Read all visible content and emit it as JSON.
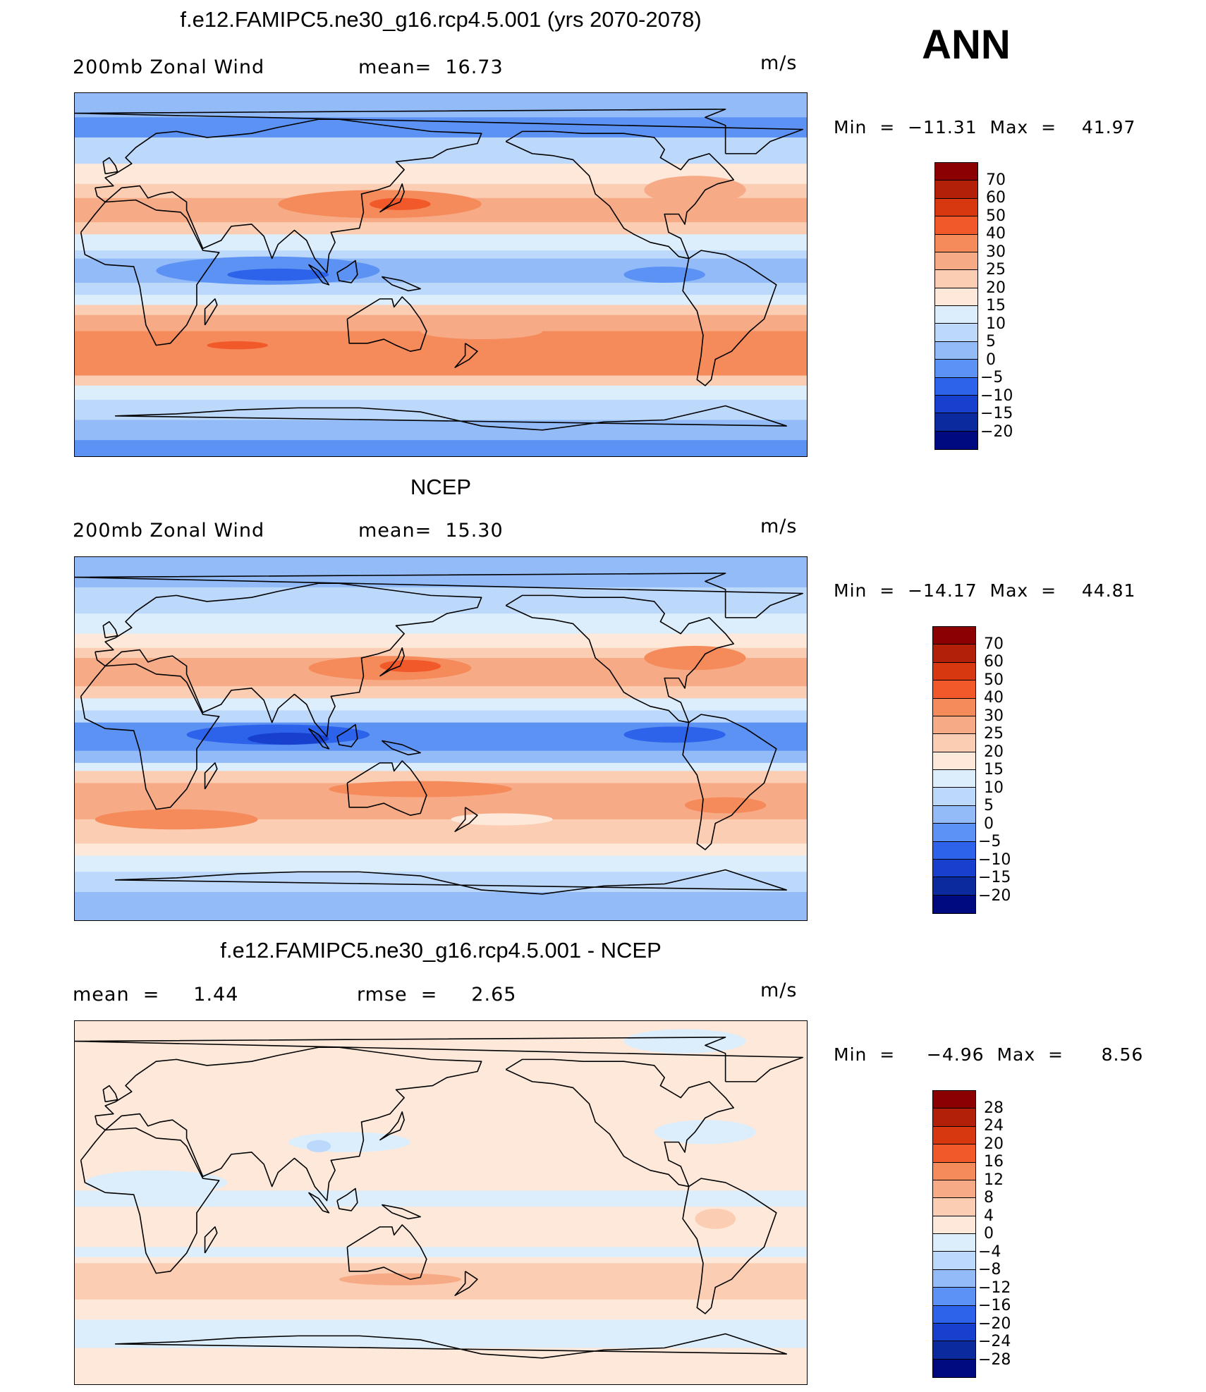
{
  "season": "ANN",
  "panels": [
    {
      "title": "f.e12.FAMIPC5.ne30_g16.rcp4.5.001 (yrs 2070-2078)",
      "left_label": "200mb Zonal Wind",
      "middle_label": "mean=  16.73",
      "units": "m/s",
      "min_max": "Min  =  −11.31  Max  =    41.97",
      "colorbar": {
        "labels": [
          "70",
          "60",
          "50",
          "40",
          "30",
          "25",
          "20",
          "15",
          "10",
          "5",
          "0",
          "−5",
          "−10",
          "−15",
          "−20"
        ],
        "colors": [
          "#8b0000",
          "#b3200a",
          "#d8380f",
          "#f2592a",
          "#f58a5a",
          "#f6ab86",
          "#fbcdb2",
          "#fde8d9",
          "#dceefc",
          "#bcd8fa",
          "#92bbf8",
          "#5c92f4",
          "#2d62ea",
          "#1640cd",
          "#0b2a9e",
          "#000a80"
        ]
      },
      "map": {
        "bands": [
          {
            "lat": 90,
            "color": "#92bbf8"
          },
          {
            "lat": 78,
            "color": "#5c92f4"
          },
          {
            "lat": 68,
            "color": "#bcd8fa"
          },
          {
            "lat": 55,
            "color": "#fde8d9"
          },
          {
            "lat": 45,
            "color": "#fbcdb2"
          },
          {
            "lat": 38,
            "color": "#f6ab86"
          },
          {
            "lat": 26,
            "color": "#fbcdb2"
          },
          {
            "lat": 20,
            "color": "#dceefc"
          },
          {
            "lat": 12,
            "color": "#bcd8fa"
          },
          {
            "lat": 8,
            "color": "#92bbf8"
          },
          {
            "lat": -4,
            "color": "#bcd8fa"
          },
          {
            "lat": -10,
            "color": "#dceefc"
          },
          {
            "lat": -15,
            "color": "#fbcdb2"
          },
          {
            "lat": -20,
            "color": "#f6ab86"
          },
          {
            "lat": -28,
            "color": "#f58a5a"
          },
          {
            "lat": -50,
            "color": "#fbcdb2"
          },
          {
            "lat": -55,
            "color": "#dceefc"
          },
          {
            "lat": -62,
            "color": "#bcd8fa"
          },
          {
            "lat": -72,
            "color": "#92bbf8"
          },
          {
            "lat": -82,
            "color": "#5c92f4"
          }
        ],
        "blobs": [
          {
            "lon": 130,
            "lat": 35,
            "rx": 50,
            "ry": 7,
            "color": "#f58a5a"
          },
          {
            "lon": 140,
            "lat": 35,
            "rx": 15,
            "ry": 3,
            "color": "#f2592a"
          },
          {
            "lon": 75,
            "lat": 2,
            "rx": 55,
            "ry": 7,
            "color": "#5c92f4"
          },
          {
            "lon": 80,
            "lat": 0,
            "rx": 25,
            "ry": 3,
            "color": "#2d62ea"
          },
          {
            "lon": 285,
            "lat": 42,
            "rx": 25,
            "ry": 7,
            "color": "#f6ab86"
          },
          {
            "lon": 270,
            "lat": 0,
            "rx": 20,
            "ry": 4,
            "color": "#5c92f4"
          },
          {
            "lon": 180,
            "lat": -28,
            "rx": 30,
            "ry": 4,
            "color": "#f6ab86"
          },
          {
            "lon": 60,
            "lat": -35,
            "rx": 15,
            "ry": 2,
            "color": "#f2592a"
          }
        ]
      }
    },
    {
      "title": "NCEP",
      "left_label": "200mb Zonal Wind",
      "middle_label": "mean=  15.30",
      "units": "m/s",
      "min_max": "Min  =  −14.17  Max  =    44.81",
      "colorbar": {
        "labels": [
          "70",
          "60",
          "50",
          "40",
          "30",
          "25",
          "20",
          "15",
          "10",
          "5",
          "0",
          "−5",
          "−10",
          "−15",
          "−20"
        ],
        "colors": [
          "#8b0000",
          "#b3200a",
          "#d8380f",
          "#f2592a",
          "#f58a5a",
          "#f6ab86",
          "#fbcdb2",
          "#fde8d9",
          "#dceefc",
          "#bcd8fa",
          "#92bbf8",
          "#5c92f4",
          "#2d62ea",
          "#1640cd",
          "#0b2a9e",
          "#000a80"
        ]
      },
      "map": {
        "bands": [
          {
            "lat": 90,
            "color": "#92bbf8"
          },
          {
            "lat": 75,
            "color": "#bcd8fa"
          },
          {
            "lat": 62,
            "color": "#dceefc"
          },
          {
            "lat": 52,
            "color": "#fde8d9"
          },
          {
            "lat": 45,
            "color": "#fbcdb2"
          },
          {
            "lat": 40,
            "color": "#f6ab86"
          },
          {
            "lat": 26,
            "color": "#fbcdb2"
          },
          {
            "lat": 20,
            "color": "#dceefc"
          },
          {
            "lat": 14,
            "color": "#bcd8fa"
          },
          {
            "lat": 8,
            "color": "#5c92f4"
          },
          {
            "lat": -6,
            "color": "#92bbf8"
          },
          {
            "lat": -12,
            "color": "#dceefc"
          },
          {
            "lat": -16,
            "color": "#fbcdb2"
          },
          {
            "lat": -22,
            "color": "#f6ab86"
          },
          {
            "lat": -40,
            "color": "#fbcdb2"
          },
          {
            "lat": -52,
            "color": "#fde8d9"
          },
          {
            "lat": -58,
            "color": "#dceefc"
          },
          {
            "lat": -66,
            "color": "#bcd8fa"
          },
          {
            "lat": -76,
            "color": "#92bbf8"
          }
        ],
        "blobs": [
          {
            "lon": 135,
            "lat": 35,
            "rx": 40,
            "ry": 6,
            "color": "#f58a5a"
          },
          {
            "lon": 145,
            "lat": 36,
            "rx": 15,
            "ry": 3,
            "color": "#f2592a"
          },
          {
            "lon": 285,
            "lat": 40,
            "rx": 25,
            "ry": 6,
            "color": "#f58a5a"
          },
          {
            "lon": 80,
            "lat": 2,
            "rx": 45,
            "ry": 5,
            "color": "#2d62ea"
          },
          {
            "lon": 85,
            "lat": 0,
            "rx": 20,
            "ry": 3,
            "color": "#1640cd"
          },
          {
            "lon": 275,
            "lat": 2,
            "rx": 25,
            "ry": 4,
            "color": "#2d62ea"
          },
          {
            "lon": 150,
            "lat": -25,
            "rx": 45,
            "ry": 4,
            "color": "#f58a5a"
          },
          {
            "lon": 30,
            "lat": -40,
            "rx": 40,
            "ry": 5,
            "color": "#f58a5a"
          },
          {
            "lon": 300,
            "lat": -33,
            "rx": 20,
            "ry": 4,
            "color": "#f58a5a"
          },
          {
            "lon": 190,
            "lat": -40,
            "rx": 25,
            "ry": 3,
            "color": "#fde8d9"
          }
        ]
      }
    },
    {
      "title": "f.e12.FAMIPC5.ne30_g16.rcp4.5.001 - NCEP",
      "left_label": "mean  =     1.44",
      "middle_label": "rmse  =     2.65",
      "units": "m/s",
      "min_max": "Min  =     −4.96  Max  =      8.56",
      "colorbar": {
        "labels": [
          "28",
          "24",
          "20",
          "16",
          "12",
          "8",
          "4",
          "0",
          "−4",
          "−8",
          "−12",
          "−16",
          "−20",
          "−24",
          "−28"
        ],
        "colors": [
          "#8b0000",
          "#b3200a",
          "#d8380f",
          "#f2592a",
          "#f58a5a",
          "#f6ab86",
          "#fbcdb2",
          "#fde8d9",
          "#dceefc",
          "#bcd8fa",
          "#92bbf8",
          "#5c92f4",
          "#2d62ea",
          "#1640cd",
          "#0b2a9e",
          "#000a80"
        ]
      },
      "map": {
        "bands": [
          {
            "lat": 90,
            "color": "#fde8d9"
          },
          {
            "lat": 20,
            "color": "#fde8d9"
          },
          {
            "lat": 6,
            "color": "#dceefc"
          },
          {
            "lat": -2,
            "color": "#fde8d9"
          },
          {
            "lat": -22,
            "color": "#dceefc"
          },
          {
            "lat": -27,
            "color": "#fde8d9"
          },
          {
            "lat": -30,
            "color": "#fbcdb2"
          },
          {
            "lat": -48,
            "color": "#fde8d9"
          },
          {
            "lat": -58,
            "color": "#dceefc"
          },
          {
            "lat": -72,
            "color": "#fde8d9"
          }
        ],
        "blobs": [
          {
            "lon": 280,
            "lat": 80,
            "rx": 30,
            "ry": 6,
            "color": "#dceefc"
          },
          {
            "lon": 115,
            "lat": 30,
            "rx": 30,
            "ry": 5,
            "color": "#dceefc"
          },
          {
            "lon": 100,
            "lat": 28,
            "rx": 6,
            "ry": 3,
            "color": "#bcd8fa"
          },
          {
            "lon": 290,
            "lat": 35,
            "rx": 25,
            "ry": 6,
            "color": "#dceefc"
          },
          {
            "lon": 20,
            "lat": 10,
            "rx": 35,
            "ry": 6,
            "color": "#dceefc"
          },
          {
            "lon": 295,
            "lat": -8,
            "rx": 10,
            "ry": 5,
            "color": "#fbcdb2"
          },
          {
            "lon": 140,
            "lat": -38,
            "rx": 30,
            "ry": 3,
            "color": "#f6ab86"
          }
        ]
      }
    }
  ]
}
